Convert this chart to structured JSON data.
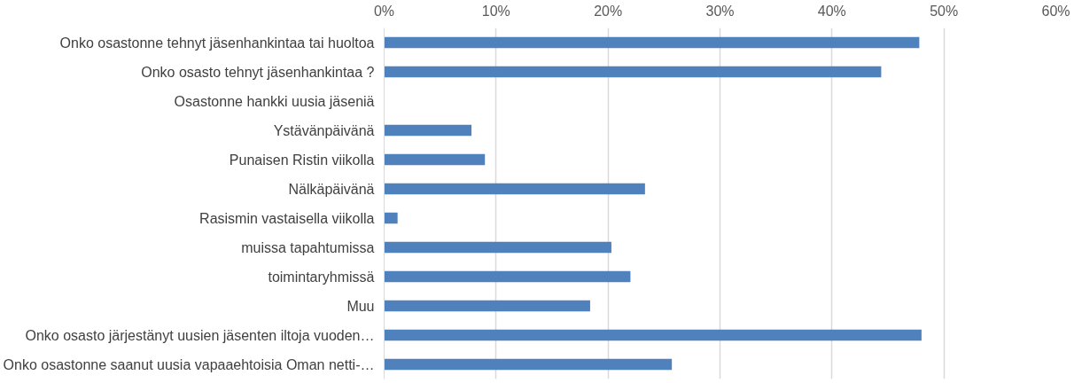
{
  "chart_data": {
    "type": "bar",
    "orientation": "horizontal",
    "categories": [
      "Onko osastonne tehnyt jäsenhankintaa tai huoltoa",
      "Onko osasto tehnyt jäsenhankintaa ?",
      "Osastonne hankki uusia jäseniä",
      "Ystävänpäivänä",
      "Punaisen Ristin viikolla",
      "Nälkäpäivänä",
      "Rasismin vastaisella viikolla",
      "muissa tapahtumissa",
      "toimintaryhmissä",
      "Muu",
      "Onko osasto järjestänyt uusien jäsenten iltoja vuoden…",
      "Onko osastonne saanut uusia vapaaehtoisia Oman netti-…"
    ],
    "values": [
      47.8,
      44.4,
      null,
      7.8,
      9.0,
      23.3,
      1.2,
      20.3,
      22.0,
      18.4,
      48.0,
      25.7
    ],
    "color": "#4f81bd",
    "xlim": [
      0,
      60
    ],
    "xticks": [
      {
        "value": 0,
        "label": "0%"
      },
      {
        "value": 10,
        "label": "10%"
      },
      {
        "value": 20,
        "label": "20%"
      },
      {
        "value": 30,
        "label": "30%"
      },
      {
        "value": 40,
        "label": "40%"
      },
      {
        "value": 50,
        "label": "50%"
      },
      {
        "value": 60,
        "label": "60%"
      }
    ],
    "grid": "x"
  }
}
